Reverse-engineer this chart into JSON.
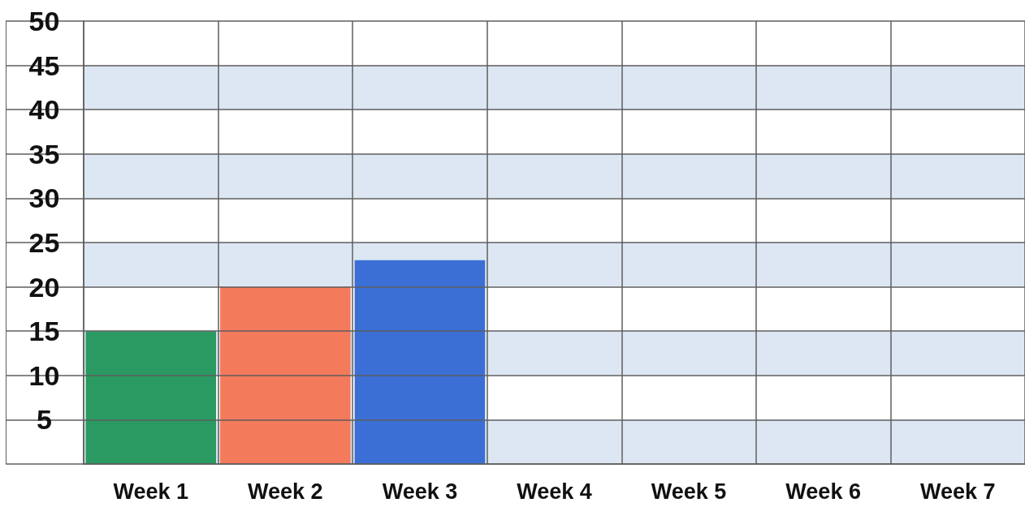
{
  "chart_data": {
    "type": "bar",
    "categories": [
      "Week 1",
      "Week 2",
      "Week 3",
      "Week 4",
      "Week 5",
      "Week 6",
      "Week 7"
    ],
    "values": [
      15,
      20,
      23,
      null,
      null,
      null,
      null
    ],
    "colors": [
      "#2a9a62",
      "#f47a5c",
      "#3b6fd6",
      null,
      null,
      null,
      null
    ],
    "ylim": [
      0,
      50
    ],
    "yticks": [
      5,
      10,
      15,
      20,
      25,
      30,
      35,
      40,
      45,
      50
    ],
    "grid": true,
    "bands": [
      {
        "axis": "y",
        "from": 0,
        "to": 5,
        "color": "#dde7f3"
      },
      {
        "axis": "y",
        "from": 10,
        "to": 15,
        "color": "#dde7f3"
      },
      {
        "axis": "y",
        "from": 20,
        "to": 25,
        "color": "#dde7f3"
      },
      {
        "axis": "y",
        "from": 30,
        "to": 35,
        "color": "#dde7f3"
      },
      {
        "axis": "y",
        "from": 40,
        "to": 45,
        "color": "#dde7f3"
      }
    ]
  }
}
